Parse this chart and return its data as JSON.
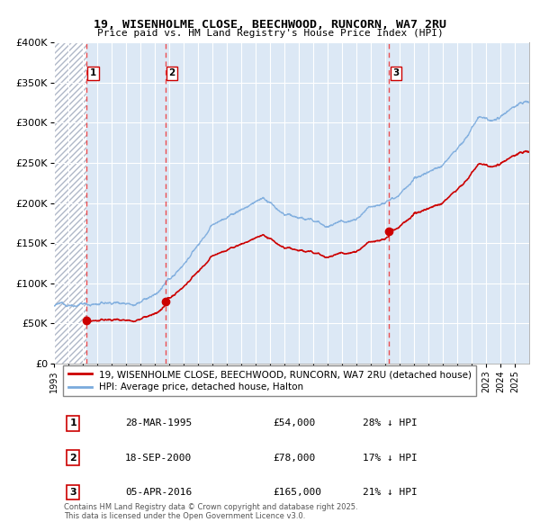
{
  "title_line1": "19, WISENHOLME CLOSE, BEECHWOOD, RUNCORN, WA7 2RU",
  "title_line2": "Price paid vs. HM Land Registry's House Price Index (HPI)",
  "ylim": [
    0,
    400000
  ],
  "yticks": [
    0,
    50000,
    100000,
    150000,
    200000,
    250000,
    300000,
    350000,
    400000
  ],
  "ytick_labels": [
    "£0",
    "£50K",
    "£100K",
    "£150K",
    "£200K",
    "£250K",
    "£300K",
    "£350K",
    "£400K"
  ],
  "sale_dates": [
    1995.24,
    2000.72,
    2016.26
  ],
  "sale_prices": [
    54000,
    78000,
    165000
  ],
  "sale_labels": [
    "1",
    "2",
    "3"
  ],
  "legend_red": "19, WISENHOLME CLOSE, BEECHWOOD, RUNCORN, WA7 2RU (detached house)",
  "legend_blue": "HPI: Average price, detached house, Halton",
  "table_rows": [
    {
      "num": "1",
      "date": "28-MAR-1995",
      "price": "£54,000",
      "change": "28% ↓ HPI"
    },
    {
      "num": "2",
      "date": "18-SEP-2000",
      "price": "£78,000",
      "change": "17% ↓ HPI"
    },
    {
      "num": "3",
      "date": "05-APR-2016",
      "price": "£165,000",
      "change": "21% ↓ HPI"
    }
  ],
  "footnote": "Contains HM Land Registry data © Crown copyright and database right 2025.\nThis data is licensed under the Open Government Licence v3.0.",
  "bg_color": "#ffffff",
  "plot_bg_color": "#dce8f5",
  "grid_color": "#ffffff",
  "red_line_color": "#cc0000",
  "blue_line_color": "#7aaadd",
  "dashed_line_color": "#ee3333",
  "xmin": 1993.0,
  "xmax": 2026.0,
  "hpi_anchors_years": [
    1993.0,
    1995.0,
    1997.0,
    1998.5,
    2000.0,
    2001.5,
    2004.0,
    2007.5,
    2009.0,
    2010.0,
    2012.0,
    2014.0,
    2016.0,
    2017.5,
    2020.0,
    2021.5,
    2022.5,
    2023.5,
    2025.5
  ],
  "hpi_anchors_vals": [
    72000,
    74000,
    76000,
    80000,
    90000,
    115000,
    175000,
    210000,
    185000,
    182000,
    172000,
    185000,
    210000,
    230000,
    255000,
    285000,
    315000,
    305000,
    325000
  ]
}
